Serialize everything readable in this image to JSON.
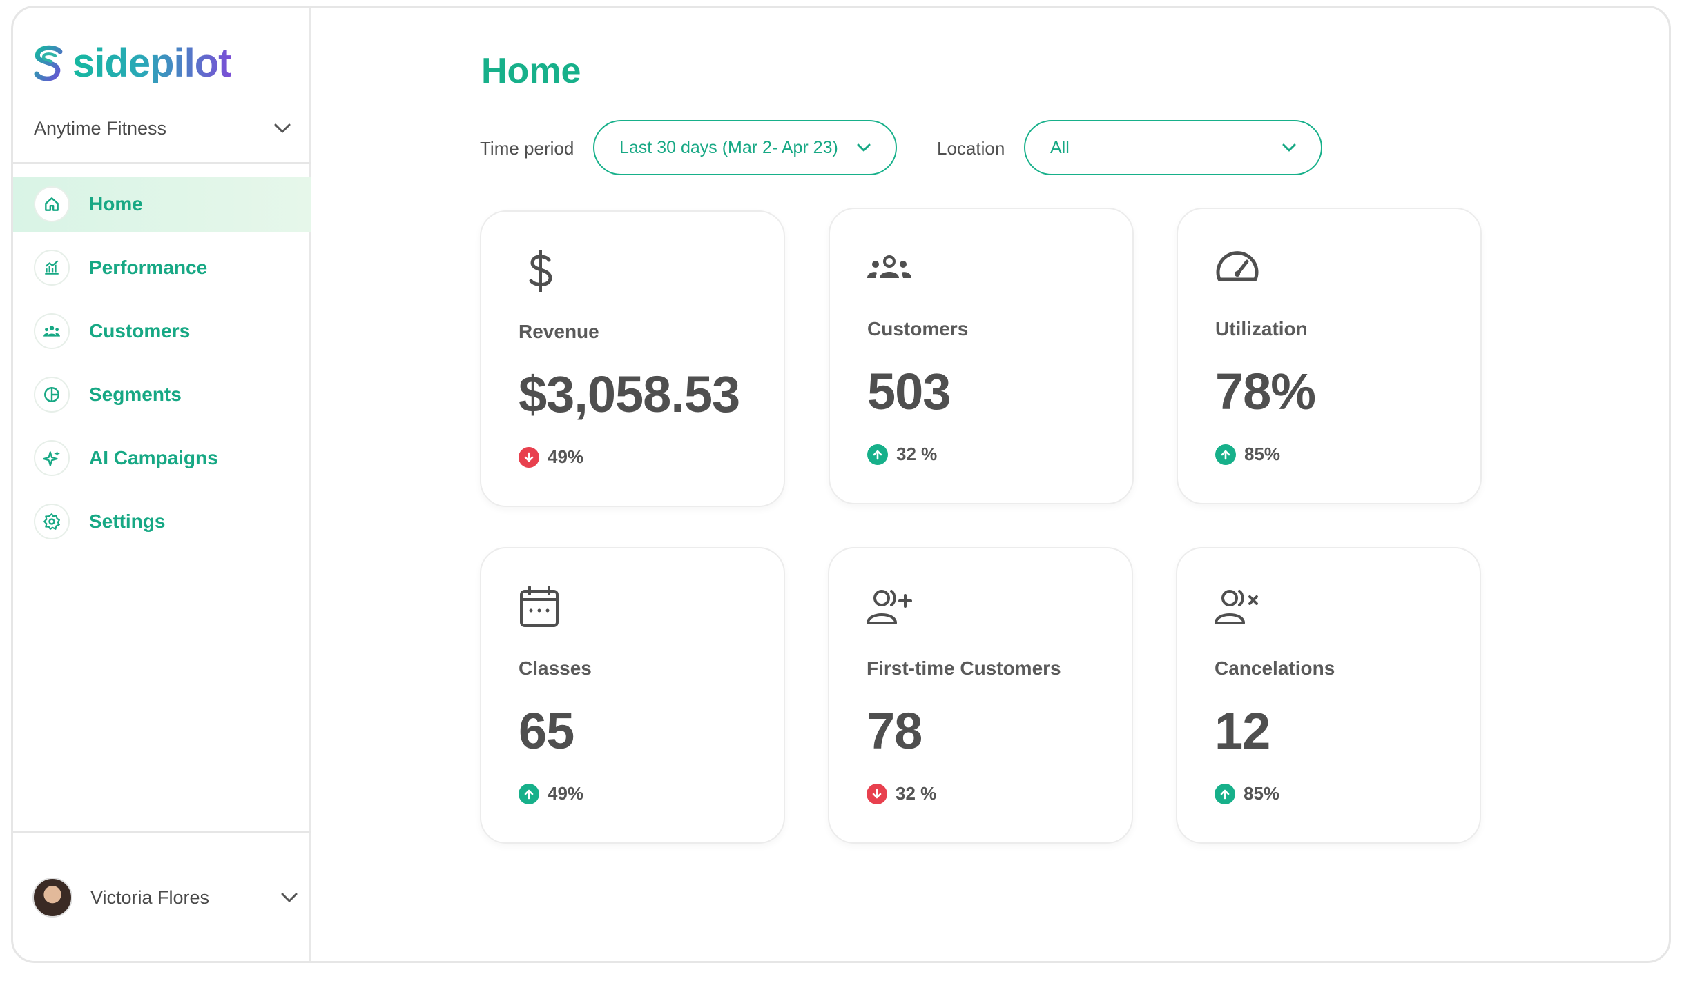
{
  "brand": {
    "name": "sidepilot",
    "accent": "#17b08a",
    "negative": "#e8404e"
  },
  "sidebar": {
    "org_name": "Anytime Fitness",
    "items": [
      {
        "label": "Home",
        "icon": "home-icon",
        "active": true
      },
      {
        "label": "Performance",
        "icon": "performance-chart-icon",
        "active": false
      },
      {
        "label": "Customers",
        "icon": "customers-icon",
        "active": false
      },
      {
        "label": "Segments",
        "icon": "segments-icon",
        "active": false
      },
      {
        "label": "AI Campaigns",
        "icon": "sparkle-icon",
        "active": false
      },
      {
        "label": "Settings",
        "icon": "gear-icon",
        "active": false
      }
    ],
    "user": {
      "name": "Victoria Flores"
    }
  },
  "main": {
    "title": "Home",
    "filters": {
      "time_label": "Time period",
      "time_value": "Last 30 days (Mar 2- Apr 23)",
      "location_label": "Location",
      "location_value": "All"
    },
    "cards": [
      {
        "label": "Revenue",
        "value": "$3,058.53",
        "delta": "49%",
        "direction": "down",
        "icon": "dollar-icon"
      },
      {
        "label": "Customers",
        "value": "503",
        "delta": "32 %",
        "direction": "up",
        "icon": "customers-icon"
      },
      {
        "label": "Utilization",
        "value": "78%",
        "delta": "85%",
        "direction": "up",
        "icon": "gauge-icon"
      },
      {
        "label": "Classes",
        "value": "65",
        "delta": "49%",
        "direction": "up",
        "icon": "calendar-icon"
      },
      {
        "label": "First-time Customers",
        "value": "78",
        "delta": "32 %",
        "direction": "down",
        "icon": "user-plus-icon"
      },
      {
        "label": "Cancelations",
        "value": "12",
        "delta": "85%",
        "direction": "up",
        "icon": "user-x-icon"
      }
    ]
  }
}
